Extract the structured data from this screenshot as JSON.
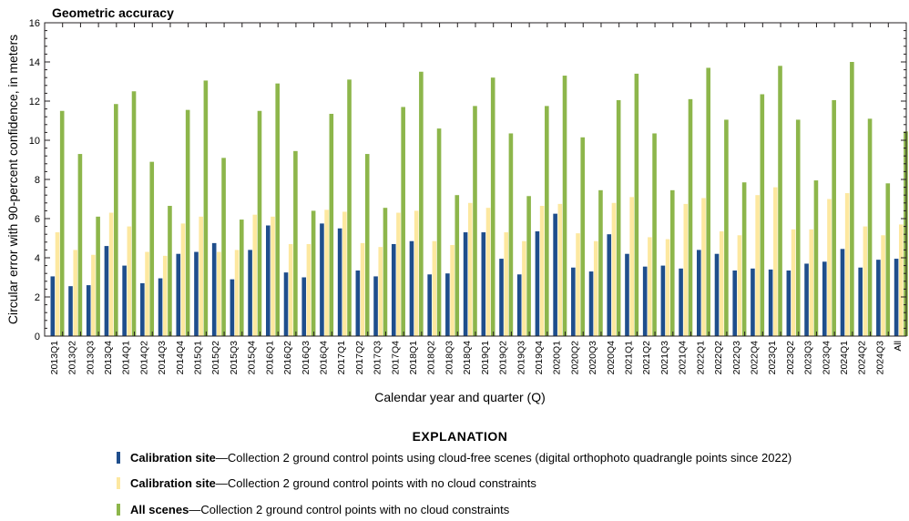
{
  "chart_data": {
    "type": "bar",
    "title": "Geometric accuracy",
    "xlabel": "Calendar year and quarter (Q)",
    "ylabel": "Circular error with 90-percent confidence, in meters",
    "ylim": [
      0,
      16
    ],
    "yticks": [
      0,
      2,
      4,
      6,
      8,
      10,
      12,
      14,
      16
    ],
    "grid": false,
    "categories": [
      "2013Q1",
      "2013Q2",
      "2013Q3",
      "2013Q4",
      "2014Q1",
      "2014Q2",
      "2014Q3",
      "2014Q4",
      "2015Q1",
      "2015Q2",
      "2015Q3",
      "2015Q4",
      "2016Q1",
      "2016Q2",
      "2016Q3",
      "2016Q4",
      "2017Q1",
      "2017Q2",
      "2017Q3",
      "2017Q4",
      "2018Q1",
      "2018Q2",
      "2018Q3",
      "2018Q4",
      "2019Q1",
      "2019Q2",
      "2019Q3",
      "2019Q4",
      "2020Q1",
      "2020Q2",
      "2020Q3",
      "2020Q4",
      "2021Q1",
      "2021Q2",
      "2021Q3",
      "2021Q4",
      "2022Q1",
      "2022Q2",
      "2022Q3",
      "2022Q4",
      "2023Q1",
      "2023Q2",
      "2023Q3",
      "2023Q4",
      "2024Q1",
      "2024Q2",
      "2024Q3",
      "All"
    ],
    "series": [
      {
        "color": "#1f4e8c",
        "values": [
          3.05,
          2.55,
          2.6,
          4.6,
          3.6,
          2.7,
          2.95,
          4.2,
          4.3,
          4.75,
          2.9,
          4.4,
          5.65,
          3.25,
          3.0,
          5.75,
          5.5,
          3.35,
          3.05,
          4.7,
          4.85,
          3.15,
          3.2,
          5.3,
          5.3,
          3.95,
          3.15,
          5.35,
          6.25,
          3.5,
          3.3,
          5.2,
          4.2,
          3.55,
          3.6,
          3.45,
          4.4,
          4.2,
          3.35,
          3.45,
          3.4,
          3.35,
          3.7,
          3.8,
          4.45,
          3.5,
          3.9,
          3.95
        ]
      },
      {
        "color": "#fde8a0",
        "values": [
          5.3,
          4.4,
          4.15,
          6.3,
          5.6,
          4.3,
          4.1,
          5.75,
          6.1,
          4.3,
          4.4,
          6.2,
          6.1,
          4.7,
          4.7,
          6.45,
          6.35,
          4.75,
          4.55,
          6.3,
          6.4,
          4.85,
          4.65,
          6.8,
          6.55,
          5.3,
          4.85,
          6.65,
          6.75,
          5.25,
          4.85,
          6.8,
          7.1,
          5.05,
          4.95,
          6.75,
          7.05,
          5.35,
          5.15,
          7.2,
          7.6,
          5.45,
          5.45,
          7.0,
          7.3,
          5.6,
          5.15,
          5.7
        ]
      },
      {
        "color": "#8db64b",
        "values": [
          11.5,
          9.3,
          6.1,
          11.85,
          12.5,
          8.9,
          6.65,
          11.55,
          13.05,
          9.1,
          5.95,
          11.5,
          12.9,
          9.45,
          6.4,
          11.35,
          13.1,
          9.3,
          6.55,
          11.7,
          13.5,
          10.6,
          7.2,
          11.75,
          13.2,
          10.35,
          7.15,
          11.75,
          13.3,
          10.15,
          7.45,
          12.05,
          13.4,
          10.35,
          7.45,
          12.1,
          13.7,
          11.05,
          7.85,
          12.35,
          13.8,
          11.05,
          7.95,
          12.05,
          14.0,
          11.1,
          7.8,
          10.45
        ]
      }
    ],
    "legend_placement": "bottom"
  },
  "legend": {
    "heading": "EXPLANATION",
    "items": [
      {
        "bold": "Calibration site",
        "text": "—Collection 2 ground control points using cloud-free scenes (digital orthophoto quadrangle points since 2022)"
      },
      {
        "bold": "Calibration site",
        "text": "—Collection 2 ground control points with no cloud constraints"
      },
      {
        "bold": "All scenes",
        "text": "—Collection 2 ground control points with no cloud constraints"
      }
    ]
  }
}
